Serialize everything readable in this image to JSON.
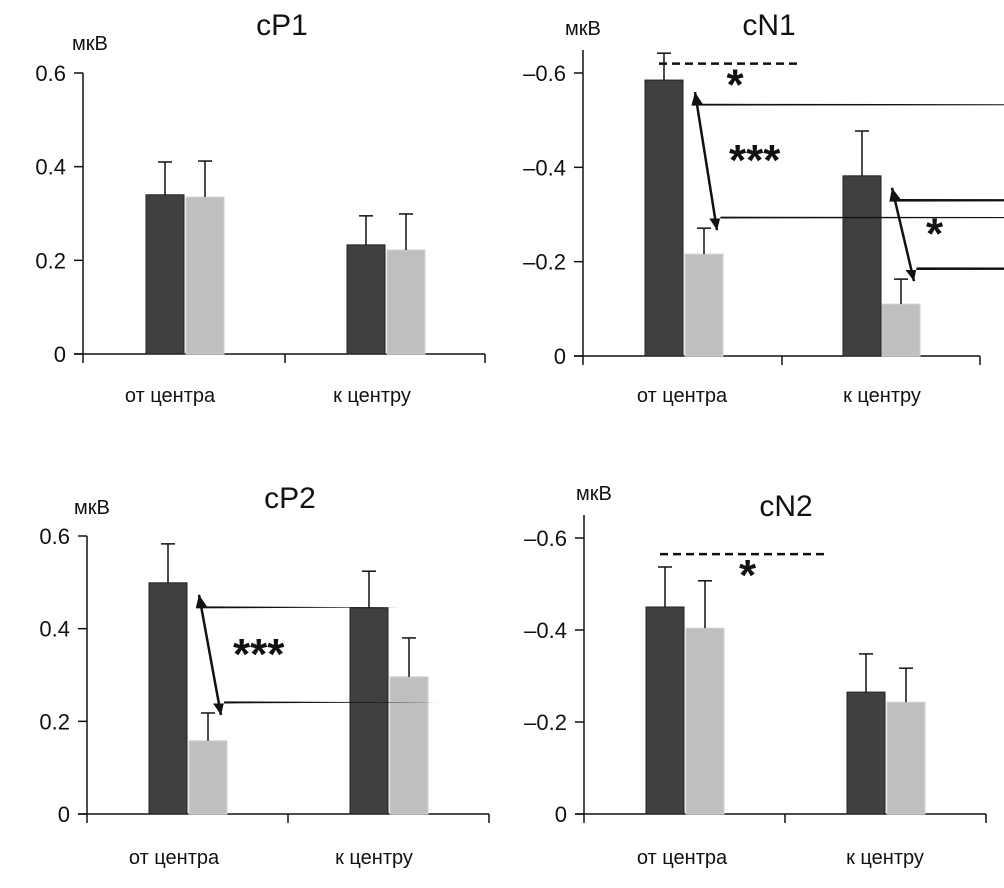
{
  "figure": {
    "unit": "мкВ",
    "colors": {
      "dark_bar": "#404040",
      "light_bar": "#bfbfbf",
      "axis": "#111111"
    }
  },
  "chart_data": [
    {
      "type": "bar",
      "title": "cP1",
      "ylabel": "мкВ",
      "categories": [
        "от центра",
        "к центру"
      ],
      "yticks": [
        "0",
        "0.2",
        "0.4",
        "0.6"
      ],
      "ylim": [
        0,
        0.6
      ],
      "inverted_sign": false,
      "series": [
        {
          "name": "dark",
          "values": [
            0.34,
            0.233
          ],
          "errors": [
            0.07,
            0.062
          ]
        },
        {
          "name": "light",
          "values": [
            0.335,
            0.222
          ],
          "errors": [
            0.077,
            0.077
          ]
        }
      ],
      "annotations": []
    },
    {
      "type": "bar",
      "title": "cN1",
      "ylabel": "мкВ",
      "categories": [
        "от центра",
        "к центру"
      ],
      "yticks": [
        "0",
        "-0.2",
        "-0.4",
        "-0.6"
      ],
      "ylim": [
        0,
        -0.6
      ],
      "inverted_sign": true,
      "series": [
        {
          "name": "dark",
          "values": [
            -0.585,
            -0.382
          ],
          "errors": [
            0.057,
            0.095
          ]
        },
        {
          "name": "light",
          "values": [
            -0.216,
            -0.11
          ],
          "errors": [
            0.055,
            0.053
          ]
        }
      ],
      "annotations": [
        {
          "kind": "dashed-bracket",
          "between": "dark от центра vs dark к центру",
          "level": -0.62,
          "label": "*"
        },
        {
          "kind": "double-arrow",
          "group": "от центра",
          "label": "***"
        },
        {
          "kind": "double-arrow",
          "group": "к центру",
          "label": "*"
        }
      ]
    },
    {
      "type": "bar",
      "title": "cP2",
      "ylabel": "мкВ",
      "categories": [
        "от центра",
        "к центру"
      ],
      "yticks": [
        "0",
        "0.2",
        "0.4",
        "0.6"
      ],
      "ylim": [
        0,
        0.6
      ],
      "inverted_sign": false,
      "series": [
        {
          "name": "dark",
          "values": [
            0.499,
            0.445
          ],
          "errors": [
            0.084,
            0.079
          ]
        },
        {
          "name": "light",
          "values": [
            0.158,
            0.296
          ],
          "errors": [
            0.06,
            0.084
          ]
        }
      ],
      "annotations": [
        {
          "kind": "double-arrow",
          "group": "от центра",
          "label": "***"
        }
      ]
    },
    {
      "type": "bar",
      "title": "cN2",
      "ylabel": "мкВ",
      "categories": [
        "от центра",
        "к центру"
      ],
      "yticks": [
        "0",
        "-0.2",
        "-0.4",
        "-0.6"
      ],
      "ylim": [
        0,
        -0.6
      ],
      "inverted_sign": true,
      "series": [
        {
          "name": "dark",
          "values": [
            -0.45,
            -0.265
          ],
          "errors": [
            0.087,
            0.083
          ]
        },
        {
          "name": "light",
          "values": [
            -0.404,
            -0.243
          ],
          "errors": [
            0.103,
            0.074
          ]
        }
      ],
      "annotations": [
        {
          "kind": "dashed-bracket",
          "between": "от центра vs к центру",
          "level": -0.565,
          "label": "*"
        }
      ]
    }
  ]
}
